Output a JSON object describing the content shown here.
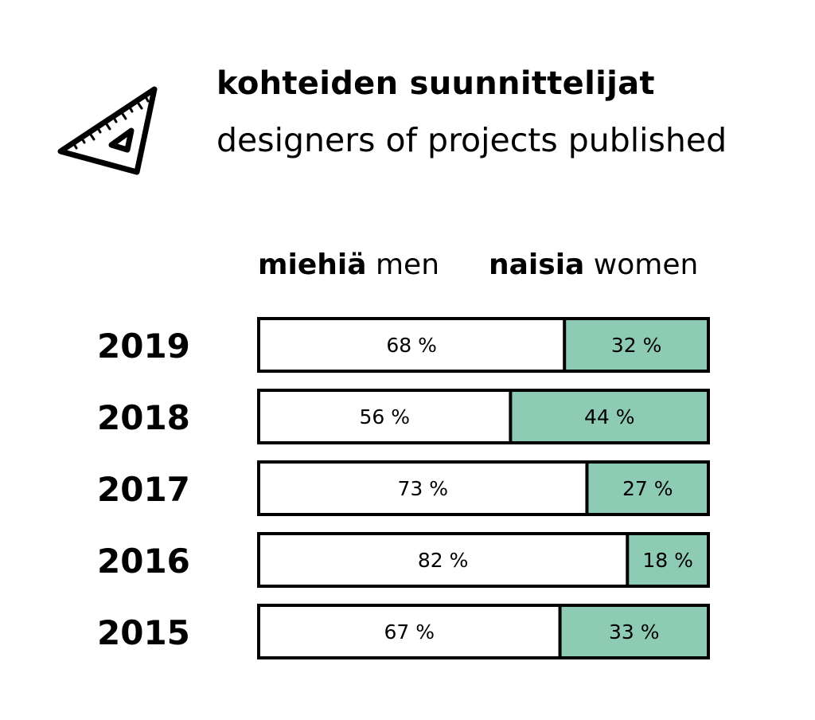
{
  "title": {
    "main": "kohteiden suunnittelijat",
    "sub": "designers of projects published"
  },
  "icon": "set-square-ruler-icon",
  "legend": {
    "men_bold": "miehiä",
    "men": "men",
    "women_bold": "naisia",
    "women": "women"
  },
  "colors": {
    "men": "#ffffff",
    "women": "#8ecbb4",
    "outline": "#000000"
  },
  "chart_data": {
    "type": "bar",
    "orientation": "horizontal-stacked-100",
    "categories": [
      "2019",
      "2018",
      "2017",
      "2016",
      "2015"
    ],
    "series": [
      {
        "name": "miehiä men",
        "values": [
          68,
          56,
          73,
          82,
          67
        ],
        "labels": [
          "68 %",
          "56 %",
          "73 %",
          "82 %",
          "67 %"
        ]
      },
      {
        "name": "naisia women",
        "values": [
          32,
          44,
          27,
          18,
          33
        ],
        "labels": [
          "32 %",
          "44 %",
          "27 %",
          "18 %",
          "33 %"
        ]
      }
    ],
    "xlim": [
      0,
      100
    ],
    "grid": false,
    "legend_position": "top"
  }
}
